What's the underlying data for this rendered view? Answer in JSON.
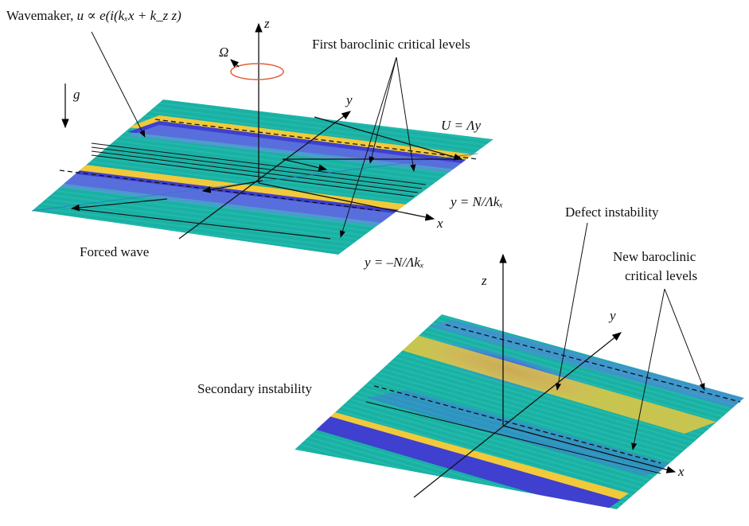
{
  "labels": {
    "wavemaker": "Wavemaker, ",
    "wavemaker_formula": "u ∝ e(i(kₓx + k_z z)",
    "first_critical": "First baroclinic critical levels",
    "forced_wave": "Forced wave",
    "defect": "Defect instability",
    "new_critical_1": "New baroclinic",
    "new_critical_2": "critical levels",
    "secondary": "Secondary instability"
  },
  "symbols": {
    "omega": "Ω",
    "g": "g",
    "z1": "z",
    "y1": "y",
    "x1": "x",
    "z2": "z",
    "y2": "y",
    "x2": "x",
    "shear": "U = Λy",
    "upper_level": "y = N/Λkₓ",
    "lower_level": "y = –N/Λkₓ"
  },
  "colors": {
    "teal": "#1ab3a6",
    "yellow": "#f2c93a",
    "blue": "#3f3fd0",
    "rotation": "#e0603a"
  }
}
